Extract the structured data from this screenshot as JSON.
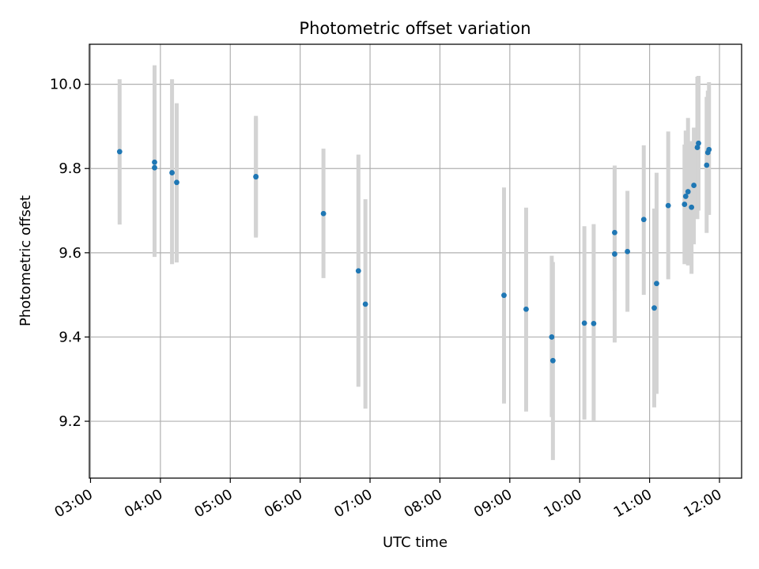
{
  "chart_data": {
    "type": "scatter",
    "title": "Photometric offset variation",
    "xlabel": "UTC time",
    "ylabel": "Photometric offset",
    "x_ticks": [
      "03:00",
      "04:00",
      "05:00",
      "06:00",
      "07:00",
      "08:00",
      "09:00",
      "10:00",
      "11:00",
      "12:00"
    ],
    "y_ticks": [
      "9.2",
      "9.4",
      "9.6",
      "9.8",
      "10.0"
    ],
    "xlim": [
      "02:59",
      "12:19"
    ],
    "ylim": [
      9.065,
      10.095
    ],
    "grid": true,
    "colors": {
      "marker": "#1f77b4",
      "errorbar": "#d3d3d3",
      "grid": "#b0b0b0"
    },
    "points": [
      {
        "x": "03:25",
        "y": 9.84,
        "low": 9.667,
        "high": 10.012
      },
      {
        "x": "03:55",
        "y": 9.815,
        "low": 9.59,
        "high": 10.045
      },
      {
        "x": "03:55",
        "y": 9.802,
        "low": 9.61,
        "high": 10.0
      },
      {
        "x": "04:10",
        "y": 9.79,
        "low": 9.573,
        "high": 10.012
      },
      {
        "x": "04:14",
        "y": 9.767,
        "low": 9.577,
        "high": 9.955
      },
      {
        "x": "05:22",
        "y": 9.781,
        "low": 9.636,
        "high": 9.925
      },
      {
        "x": "05:22",
        "y": 9.78,
        "low": 9.64,
        "high": 9.92
      },
      {
        "x": "06:20",
        "y": 9.693,
        "low": 9.54,
        "high": 9.847
      },
      {
        "x": "06:50",
        "y": 9.557,
        "low": 9.282,
        "high": 9.833
      },
      {
        "x": "06:56",
        "y": 9.478,
        "low": 9.23,
        "high": 9.727
      },
      {
        "x": "08:55",
        "y": 9.499,
        "low": 9.242,
        "high": 9.755
      },
      {
        "x": "09:14",
        "y": 9.466,
        "low": 9.223,
        "high": 9.707
      },
      {
        "x": "09:36",
        "y": 9.4,
        "low": 9.21,
        "high": 9.593
      },
      {
        "x": "09:37",
        "y": 9.344,
        "low": 9.108,
        "high": 9.578
      },
      {
        "x": "10:04",
        "y": 9.433,
        "low": 9.204,
        "high": 9.663
      },
      {
        "x": "10:12",
        "y": 9.432,
        "low": 9.2,
        "high": 9.668
      },
      {
        "x": "10:30",
        "y": 9.648,
        "low": 9.51,
        "high": 9.8
      },
      {
        "x": "10:30",
        "y": 9.597,
        "low": 9.387,
        "high": 9.807
      },
      {
        "x": "10:41",
        "y": 9.603,
        "low": 9.46,
        "high": 9.747
      },
      {
        "x": "10:55",
        "y": 9.679,
        "low": 9.5,
        "high": 9.855
      },
      {
        "x": "11:04",
        "y": 9.469,
        "low": 9.233,
        "high": 9.705
      },
      {
        "x": "11:06",
        "y": 9.527,
        "low": 9.265,
        "high": 9.79
      },
      {
        "x": "11:16",
        "y": 9.712,
        "low": 9.537,
        "high": 9.888
      },
      {
        "x": "11:30",
        "y": 9.715,
        "low": 9.573,
        "high": 9.857
      },
      {
        "x": "11:31",
        "y": 9.734,
        "low": 9.578,
        "high": 9.89
      },
      {
        "x": "11:33",
        "y": 9.745,
        "low": 9.57,
        "high": 9.92
      },
      {
        "x": "11:36",
        "y": 9.708,
        "low": 9.55,
        "high": 9.865
      },
      {
        "x": "11:38",
        "y": 9.76,
        "low": 9.62,
        "high": 9.897
      },
      {
        "x": "11:41",
        "y": 9.85,
        "low": 9.68,
        "high": 10.018
      },
      {
        "x": "11:42",
        "y": 9.86,
        "low": 9.7,
        "high": 10.02
      },
      {
        "x": "11:49",
        "y": 9.808,
        "low": 9.647,
        "high": 9.97
      },
      {
        "x": "11:50",
        "y": 9.838,
        "low": 9.69,
        "high": 9.985
      },
      {
        "x": "11:51",
        "y": 9.845,
        "low": 9.69,
        "high": 10.005
      }
    ]
  }
}
